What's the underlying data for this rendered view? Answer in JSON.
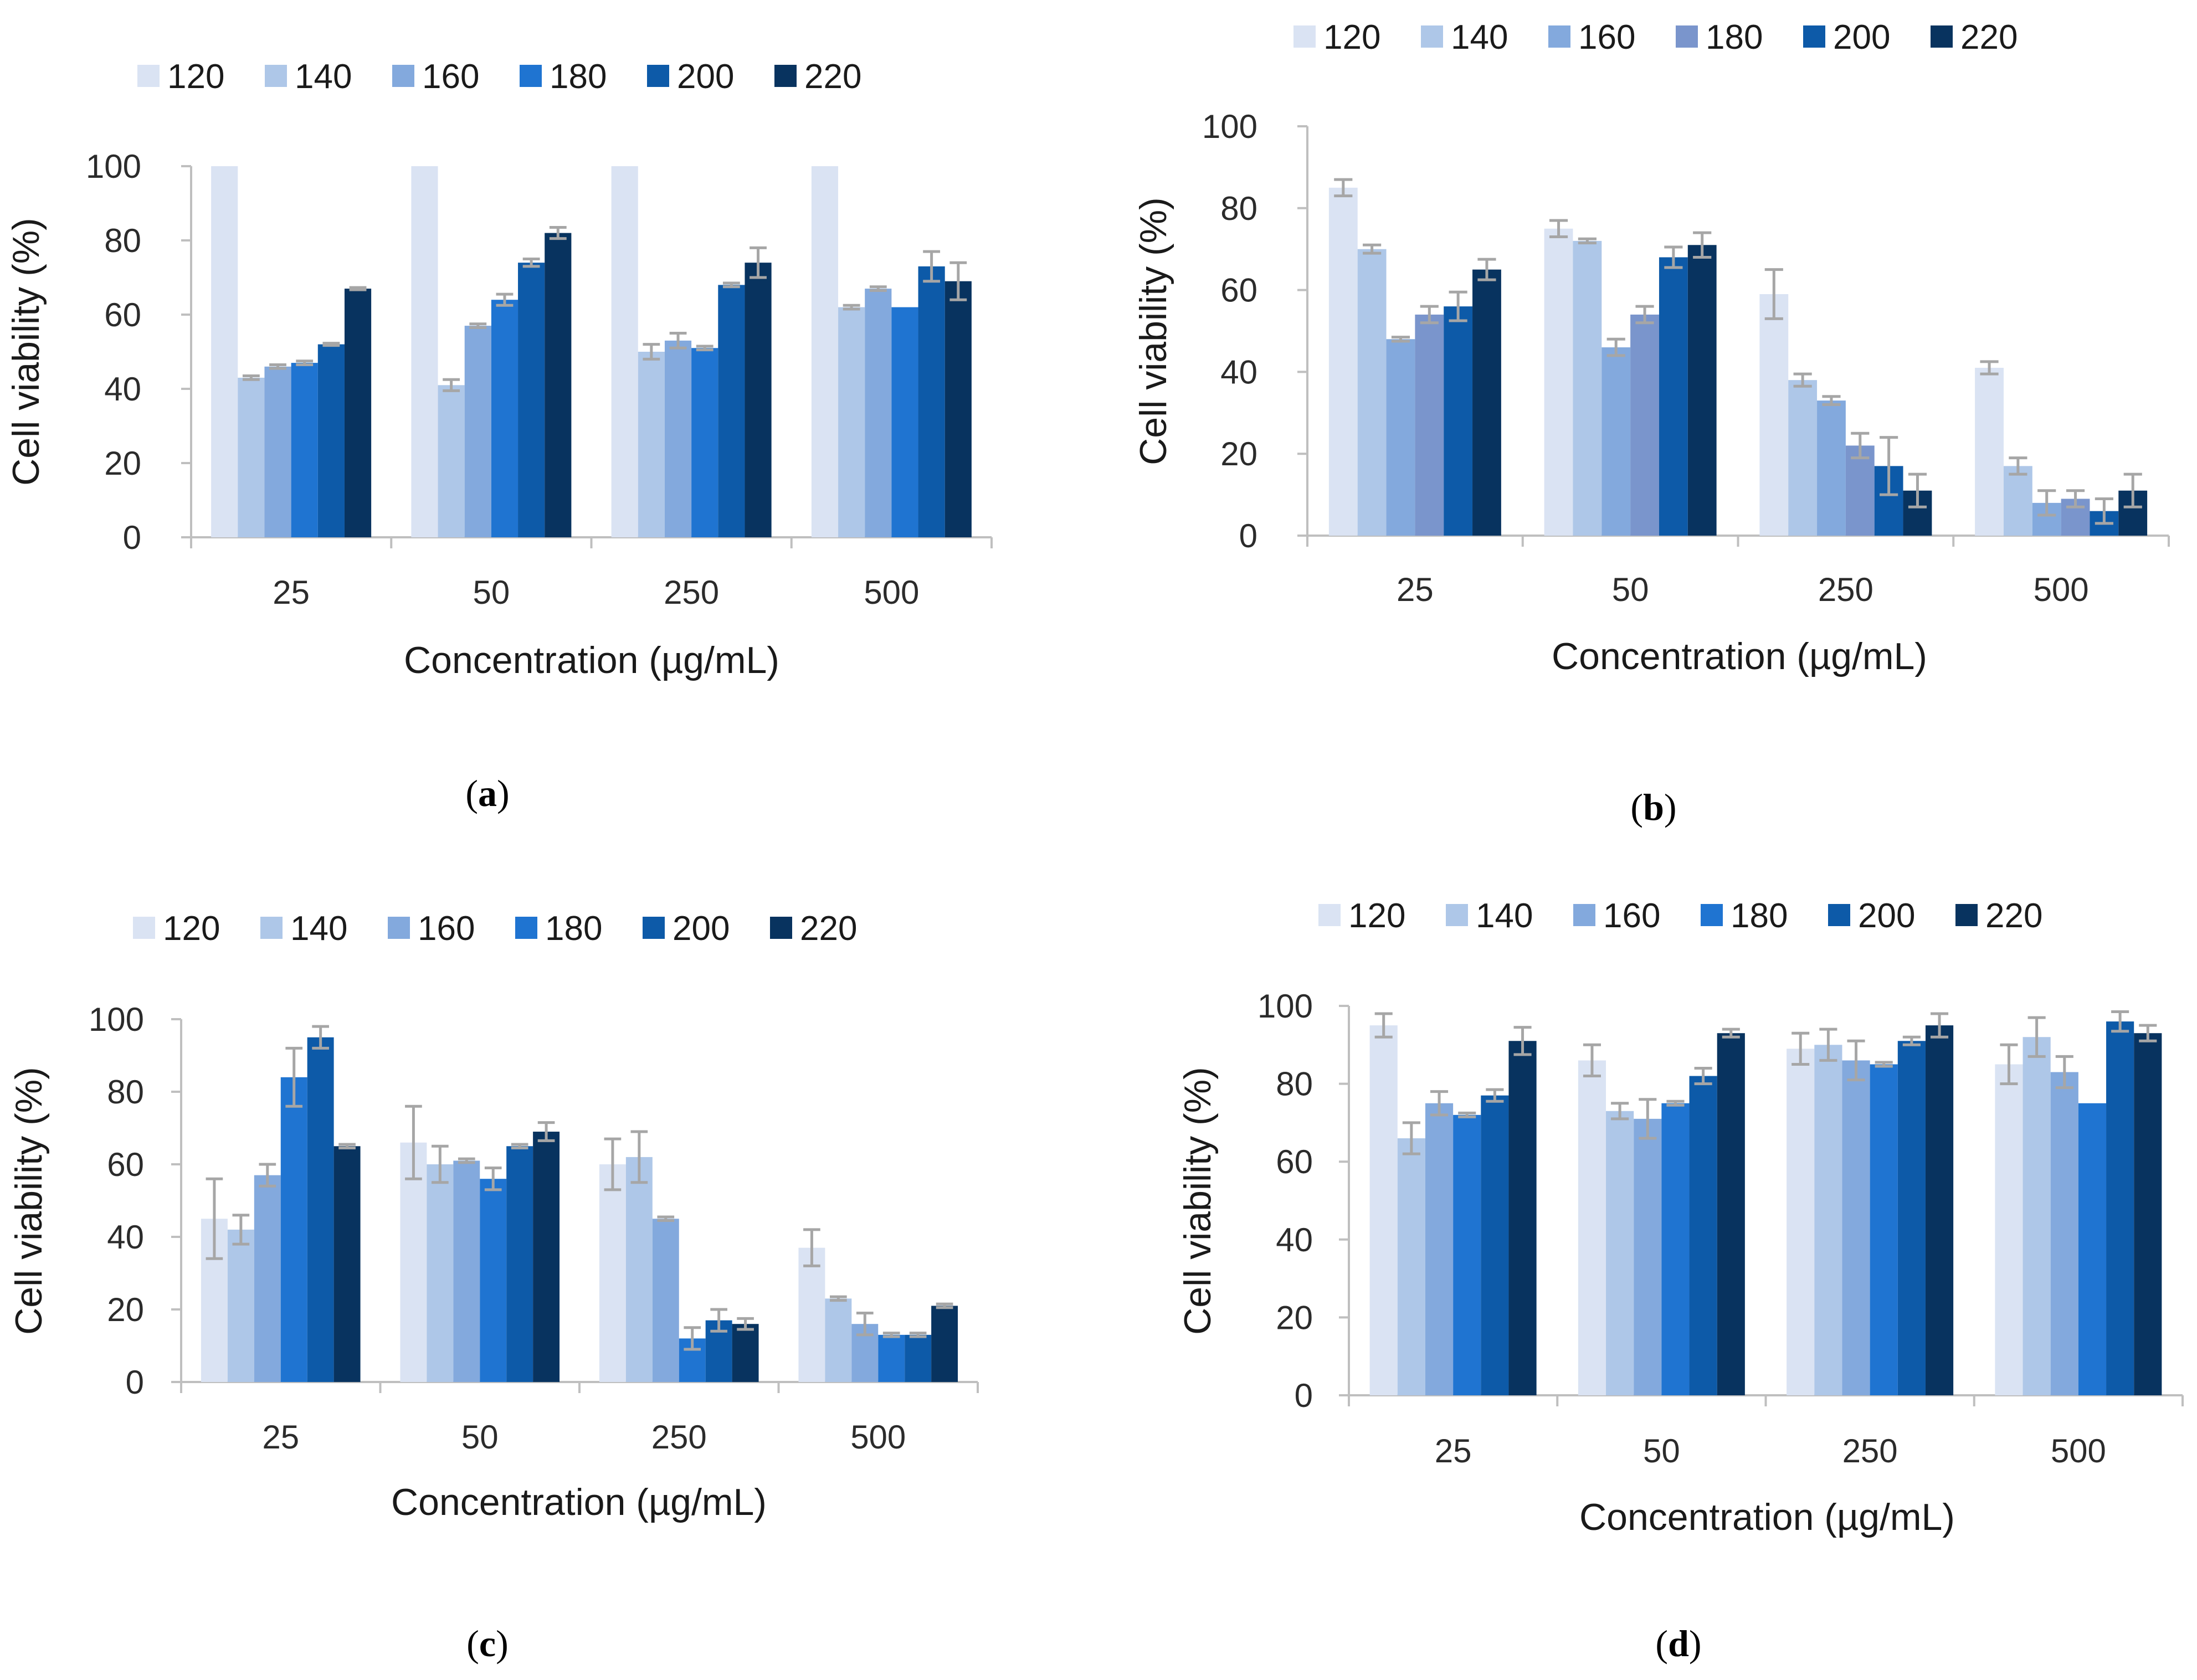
{
  "chart_data": [
    {
      "panel": "a",
      "type": "bar",
      "xlabel": "Concentration (µg/mL)",
      "ylabel": "Cell viability (%)",
      "ylim": [
        0,
        100
      ],
      "yticks": [
        "0",
        "20",
        "40",
        "60",
        "80",
        "100"
      ],
      "categories": [
        "25",
        "50",
        "250",
        "500"
      ],
      "series": [
        {
          "name": "120",
          "values": [
            100,
            100,
            100,
            100
          ],
          "errors": [
            0,
            0,
            0,
            0
          ]
        },
        {
          "name": "140",
          "values": [
            43,
            41,
            50,
            62
          ],
          "errors": [
            0.5,
            1.5,
            2,
            0.5
          ]
        },
        {
          "name": "160",
          "values": [
            46,
            57,
            53,
            67
          ],
          "errors": [
            0.5,
            0.5,
            2,
            0.5
          ]
        },
        {
          "name": "180",
          "values": [
            47,
            64,
            51,
            62
          ],
          "errors": [
            0.5,
            1.5,
            0.5,
            0
          ]
        },
        {
          "name": "200",
          "values": [
            52,
            74,
            68,
            73
          ],
          "errors": [
            0.3,
            1,
            0.5,
            4
          ]
        },
        {
          "name": "220",
          "values": [
            67,
            82,
            74,
            69
          ],
          "errors": [
            0.3,
            1.5,
            4,
            5
          ]
        }
      ]
    },
    {
      "panel": "b",
      "type": "bar",
      "xlabel": "Concentration (µg/mL)",
      "ylabel": "Cell viability (%)",
      "ylim": [
        0,
        100
      ],
      "yticks": [
        "0",
        "20",
        "40",
        "60",
        "80",
        "100"
      ],
      "categories": [
        "25",
        "50",
        "250",
        "500"
      ],
      "series": [
        {
          "name": "120",
          "values": [
            85,
            75,
            59,
            41
          ],
          "errors": [
            2,
            2,
            6,
            1.5
          ]
        },
        {
          "name": "140",
          "values": [
            70,
            72,
            38,
            17
          ],
          "errors": [
            1,
            0.5,
            1.5,
            2
          ]
        },
        {
          "name": "160",
          "values": [
            48,
            46,
            33,
            8
          ],
          "errors": [
            0.5,
            2,
            1,
            3
          ]
        },
        {
          "name": "180",
          "values": [
            54,
            54,
            22,
            9
          ],
          "errors": [
            2,
            2,
            3,
            2
          ]
        },
        {
          "name": "200",
          "values": [
            56,
            68,
            17,
            6
          ],
          "errors": [
            3.5,
            2.5,
            7,
            3
          ]
        },
        {
          "name": "220",
          "values": [
            65,
            71,
            11,
            11
          ],
          "errors": [
            2.5,
            3,
            4,
            4
          ]
        }
      ]
    },
    {
      "panel": "c",
      "type": "bar",
      "xlabel": "Concentration (µg/mL)",
      "ylabel": "Cell viability (%)",
      "ylim": [
        0,
        100
      ],
      "yticks": [
        "0",
        "20",
        "40",
        "60",
        "80",
        "100"
      ],
      "categories": [
        "25",
        "50",
        "250",
        "500"
      ],
      "series": [
        {
          "name": "120",
          "values": [
            45,
            66,
            60,
            37
          ],
          "errors": [
            11,
            10,
            7,
            5
          ]
        },
        {
          "name": "140",
          "values": [
            42,
            60,
            62,
            23
          ],
          "errors": [
            4,
            5,
            7,
            0.5
          ]
        },
        {
          "name": "160",
          "values": [
            57,
            61,
            45,
            16
          ],
          "errors": [
            3,
            0.5,
            0.5,
            3
          ]
        },
        {
          "name": "180",
          "values": [
            84,
            56,
            12,
            13
          ],
          "errors": [
            8,
            3,
            3,
            0.5
          ]
        },
        {
          "name": "200",
          "values": [
            95,
            65,
            17,
            13
          ],
          "errors": [
            3,
            0.5,
            3,
            0.5
          ]
        },
        {
          "name": "220",
          "values": [
            65,
            69,
            16,
            21
          ],
          "errors": [
            0.5,
            2.5,
            1.5,
            0.5
          ]
        }
      ]
    },
    {
      "panel": "d",
      "type": "bar",
      "xlabel": "Concentration (µg/mL)",
      "ylabel": "Cell viability (%)",
      "ylim": [
        0,
        100
      ],
      "yticks": [
        "0",
        "20",
        "40",
        "60",
        "80",
        "100"
      ],
      "categories": [
        "25",
        "50",
        "250",
        "500"
      ],
      "series": [
        {
          "name": "120",
          "values": [
            95,
            86,
            89,
            85
          ],
          "errors": [
            3,
            4,
            4,
            5
          ]
        },
        {
          "name": "140",
          "values": [
            66,
            73,
            90,
            92
          ],
          "errors": [
            4,
            2,
            4,
            5
          ]
        },
        {
          "name": "160",
          "values": [
            75,
            71,
            86,
            83
          ],
          "errors": [
            3,
            5,
            5,
            4
          ]
        },
        {
          "name": "180",
          "values": [
            72,
            75,
            85,
            75
          ],
          "errors": [
            0.5,
            0.5,
            0.5,
            0
          ]
        },
        {
          "name": "200",
          "values": [
            77,
            82,
            91,
            96
          ],
          "errors": [
            1.5,
            2,
            1,
            2.5
          ]
        },
        {
          "name": "220",
          "values": [
            91,
            93,
            95,
            93
          ],
          "errors": [
            3.5,
            1,
            3,
            2
          ]
        }
      ]
    }
  ],
  "panel_labels": {
    "a": {
      "open": "(",
      "letter": "a",
      "close": ")"
    },
    "b": {
      "open": "(",
      "letter": "b",
      "close": ")"
    },
    "c": {
      "open": "(",
      "letter": "c",
      "close": ")"
    },
    "d": {
      "open": "(",
      "letter": "d",
      "close": ")"
    }
  },
  "colors": {
    "series_a": [
      "#dae3f3",
      "#aec7e8",
      "#83a9dd",
      "#1f74d1",
      "#0d5aa8",
      "#08335f"
    ],
    "series_b": [
      "#dae3f3",
      "#aec7e8",
      "#83a9dd",
      "#7a95cc",
      "#0d5aa8",
      "#08335f"
    ],
    "series_c": [
      "#dae3f3",
      "#aec7e8",
      "#83a9dd",
      "#1f74d1",
      "#0d5aa8",
      "#08335f"
    ],
    "series_d": [
      "#dae3f3",
      "#aec7e8",
      "#83a9dd",
      "#1f74d1",
      "#0d5aa8",
      "#08335f"
    ],
    "axis": "#bfbfbf",
    "error_bar": "#a6a6a6"
  }
}
